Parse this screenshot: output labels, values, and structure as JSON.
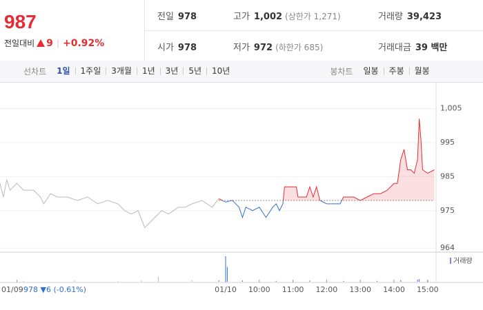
{
  "header": {
    "price": "987",
    "change_label": "전일대비",
    "change": "9",
    "change_rate": "+0.92%",
    "stats": [
      [
        {
          "label": "전일",
          "value": "978"
        },
        {
          "label": "고가",
          "value": "1,002",
          "note": "(상한가 1,271)"
        },
        {
          "label": "거래량",
          "value": "39,423"
        }
      ],
      [
        {
          "label": "시가",
          "value": "978"
        },
        {
          "label": "저가",
          "value": "972",
          "note": "(하한가 685)"
        },
        {
          "label": "거래대금",
          "value": "39 백만"
        }
      ]
    ]
  },
  "tabs": {
    "line_label": "선차트",
    "line_items": [
      "1일",
      "1주일",
      "3개월",
      "1년",
      "3년",
      "5년",
      "10년"
    ],
    "active": 0,
    "candle_label": "봉차트",
    "candle_items": [
      "일봉",
      "주봉",
      "월봉"
    ]
  },
  "chart_data": {
    "type": "line",
    "baseline": 978,
    "grid": true,
    "xlim": [
      2.3,
      15.25
    ],
    "ylim": [
      963,
      1011
    ],
    "xticks": [
      {
        "value": 2.8,
        "label": "01/09"
      },
      {
        "value": 9,
        "label": "01/10"
      },
      {
        "value": 10,
        "label": "10:00"
      },
      {
        "value": 11,
        "label": "11:00"
      },
      {
        "value": 12,
        "label": "12:00"
      },
      {
        "value": 13,
        "label": "13:00"
      },
      {
        "value": 14,
        "label": "14:00"
      },
      {
        "value": 15,
        "label": "15:00"
      }
    ],
    "yticks": [
      {
        "value": 1005,
        "label": "1,005"
      },
      995,
      985,
      975,
      964
    ],
    "prev_note": "978 ▼6 (-0.61%)",
    "series": [
      {
        "color": "#bbbbbb",
        "x": [
          2.3,
          2.4,
          2.5,
          2.6,
          2.8,
          3.0,
          3.3,
          3.5,
          3.6,
          3.8,
          4.0,
          4.3,
          4.6,
          4.9,
          5.2,
          5.5,
          5.8,
          6.0,
          6.2,
          6.4,
          6.6,
          6.7,
          6.9,
          7.1,
          7.3,
          7.6,
          7.8,
          8.0,
          8.3,
          8.6,
          8.8
        ],
        "values": [
          983,
          979,
          984,
          981,
          983,
          981,
          981,
          979,
          977,
          980,
          979,
          979,
          978,
          979,
          977,
          978,
          977,
          975,
          974,
          975,
          970,
          971,
          973,
          975,
          974,
          976,
          976,
          977,
          978,
          976,
          978.5
        ]
      },
      {
        "color": "#e52b33",
        "down_color": "#2f6fd0",
        "x": [
          8.8,
          9.0,
          9.2,
          9.4,
          9.5,
          9.6,
          9.8,
          10.0,
          10.2,
          10.4,
          10.5,
          10.6,
          10.7,
          10.75,
          11.1,
          11.15,
          11.4,
          11.5,
          11.6,
          11.7,
          11.8,
          12.0,
          12.2,
          12.4,
          12.5,
          12.8,
          13.0,
          13.2,
          13.4,
          13.6,
          13.8,
          14.0,
          14.1,
          14.2,
          14.3,
          14.4,
          14.5,
          14.6,
          14.7,
          14.75,
          14.8,
          14.85,
          15.0,
          15.2
        ],
        "values": [
          978.5,
          977.5,
          978,
          976,
          973,
          976,
          975,
          976,
          973,
          976,
          977,
          975,
          977,
          982,
          982,
          979,
          979,
          982,
          979,
          982,
          978,
          977,
          977,
          977,
          979,
          979,
          978,
          979,
          980,
          980,
          981,
          983,
          983,
          990,
          993,
          987,
          987,
          986,
          990,
          1002,
          996,
          987,
          986,
          987
        ]
      }
    ],
    "volume": {
      "name": "거래량",
      "color": "#8a7fd0",
      "x": [
        3.0,
        4.5,
        5.8,
        6.5,
        7.0,
        8.0,
        8.8,
        9.0,
        9.05,
        9.5,
        10.5,
        11.5,
        12.5,
        13.5,
        14.2,
        14.7,
        14.75,
        15.0
      ],
      "values": [
        2,
        3,
        2,
        3,
        12,
        4,
        3,
        60,
        35,
        3,
        2,
        3,
        2,
        2,
        4,
        5,
        6,
        3
      ]
    }
  }
}
